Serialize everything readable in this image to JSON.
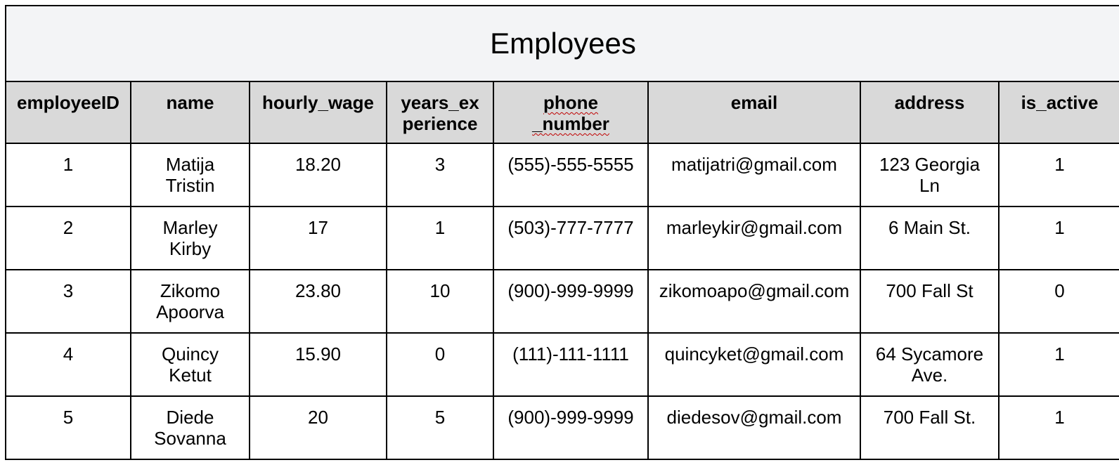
{
  "title": "Employees",
  "columns": [
    {
      "label": "employeeID"
    },
    {
      "label": "name"
    },
    {
      "label": "hourly_wage"
    },
    {
      "label": "years_ex perience"
    },
    {
      "label": "phone _number"
    },
    {
      "label": "email"
    },
    {
      "label": "address"
    },
    {
      "label": "is_active"
    }
  ],
  "rows": [
    [
      "1",
      "Matija Tristin",
      "18.20",
      "3",
      "(555)-555-5555",
      "matijatri@gmail.com",
      "123 Georgia Ln",
      "1"
    ],
    [
      "2",
      "Marley Kirby",
      "17",
      "1",
      "(503)-777-7777",
      "marleykir@gmail.com",
      "6 Main St.",
      "1"
    ],
    [
      "3",
      "Zikomo Apoorva",
      "23.80",
      "10",
      "(900)-999-9999",
      "zikomoapo@gmail.com",
      "700 Fall St",
      "0"
    ],
    [
      "4",
      "Quincy Ketut",
      "15.90",
      "0",
      "(111)-111-1111",
      "quincyket@gmail.com",
      "64 Sycamore Ave.",
      "1"
    ],
    [
      "5",
      "Diede Sovanna",
      "20",
      "5",
      "(900)-999-9999",
      "diedesov@gmail.com",
      "700 Fall St.",
      "1"
    ]
  ]
}
